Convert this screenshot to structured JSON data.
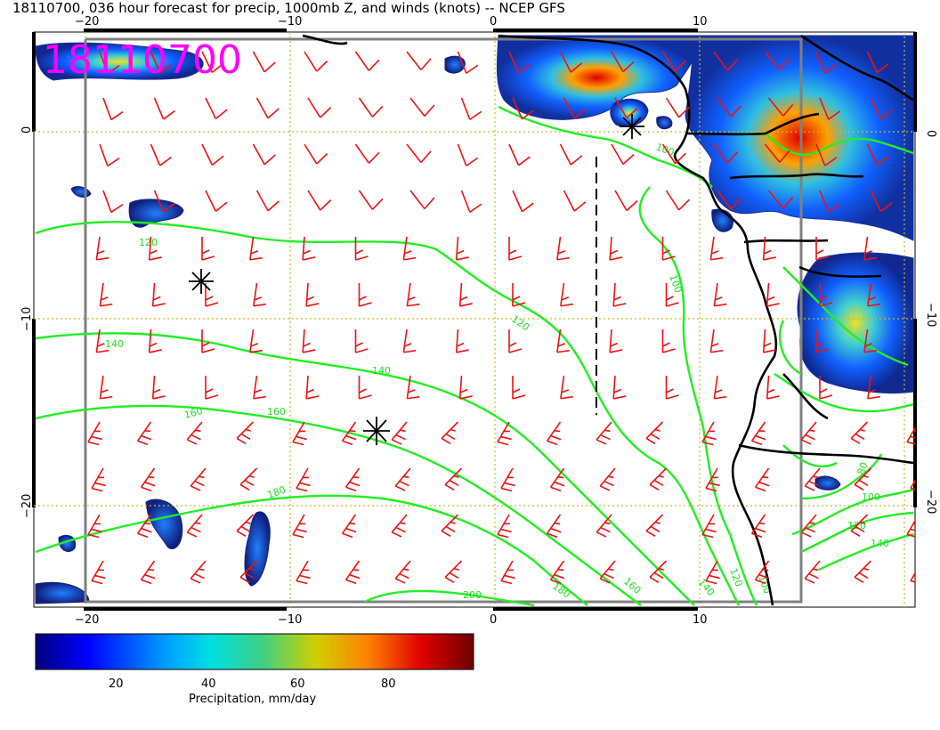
{
  "header": {
    "title": "18110700, 036 hour forecast for precip, 1000mb Z, and winds (knots) -- NCEP GFS",
    "stamp": "18110700"
  },
  "map": {
    "lon_range": [
      -22.5,
      20.5
    ],
    "lat_range": [
      -25.5,
      5.2
    ],
    "lon_ticks": [
      "−20",
      "−10",
      "0",
      "10"
    ],
    "lat_ticks": [
      "0",
      "−10",
      "−20"
    ],
    "colors": {
      "barb": "#ee1111",
      "contour": "#22ee22",
      "coast": "#000000",
      "grid": "#ccbb22",
      "stamp": "#ff00ff"
    },
    "contour_labels": [
      "80",
      "100",
      "120",
      "140",
      "160",
      "180",
      "200"
    ],
    "markers": [
      "storm-marker",
      "storm-marker",
      "storm-marker"
    ]
  },
  "colorbar": {
    "label": "Precipitation, mm/day",
    "ticks": [
      "20",
      "40",
      "60",
      "80"
    ],
    "range": [
      2,
      96
    ]
  }
}
